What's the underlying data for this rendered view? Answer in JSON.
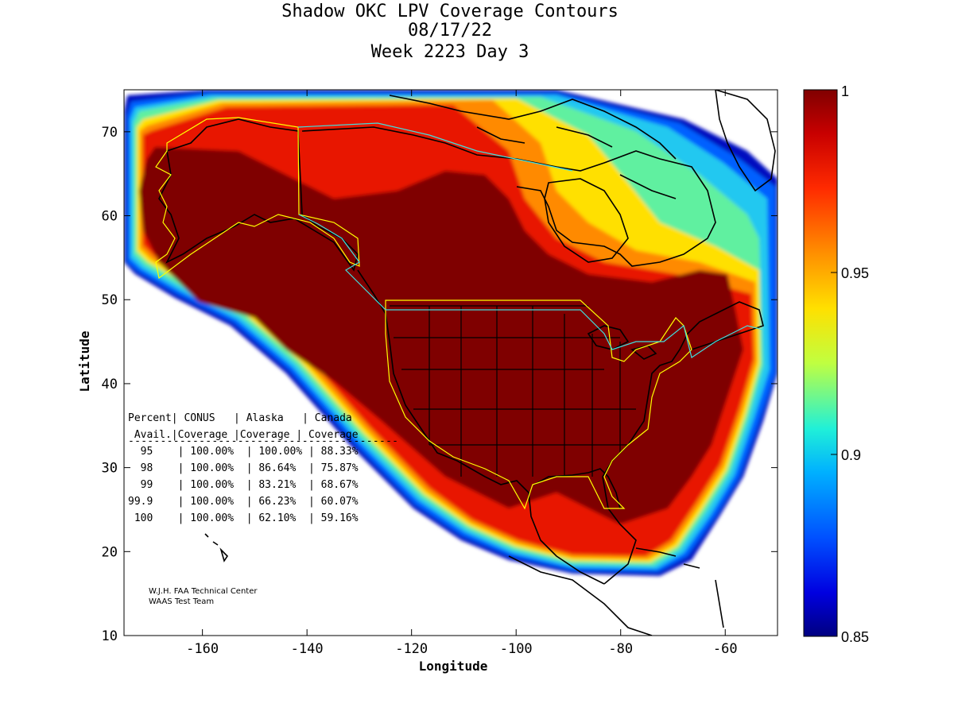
{
  "title": {
    "line1": "Shadow OKC LPV Coverage Contours",
    "line2": "08/17/22",
    "line3": "Week 2223 Day 3"
  },
  "map": {
    "xlabel": "Longitude",
    "ylabel": "Latitude",
    "x_ticks": [
      "-160",
      "-140",
      "-120",
      "-100",
      "-80",
      "-60"
    ],
    "y_ticks": [
      "10",
      "20",
      "30",
      "40",
      "50",
      "60",
      "70"
    ],
    "xlim": [
      -175,
      -50
    ],
    "ylim": [
      10,
      75
    ],
    "colorbar": {
      "labels": [
        "1",
        "0.95",
        "0.9",
        "0.85"
      ],
      "range": [
        0.85,
        1
      ],
      "colormap": "jet"
    }
  },
  "coverage_table": {
    "header1": "Percent| CONUS   | Alaska   | Canada",
    "header2": " Avail.|Coverage |Coverage | Coverage",
    "separator": "------------------------------------------",
    "rows": [
      "  95    | 100.00%  | 100.00% | 88.33%",
      "  98    | 100.00%  | 86.64%  | 75.87%",
      "  99    | 100.00%  | 83.21%  | 68.67%",
      "99.9    | 100.00%  | 66.23%  | 60.07%",
      " 100    | 100.00%  | 62.10%  | 59.16%"
    ]
  },
  "credits": {
    "line1": "W.J.H. FAA Technical Center",
    "line2": "WAAS Test Team"
  },
  "colors": {
    "dark_red": "#7f0000",
    "red": "#e41a00",
    "orange": "#ff8a00",
    "yellow": "#ffe800",
    "cyan": "#00d8ff",
    "blue": "#0030ff",
    "navy": "#000080"
  }
}
